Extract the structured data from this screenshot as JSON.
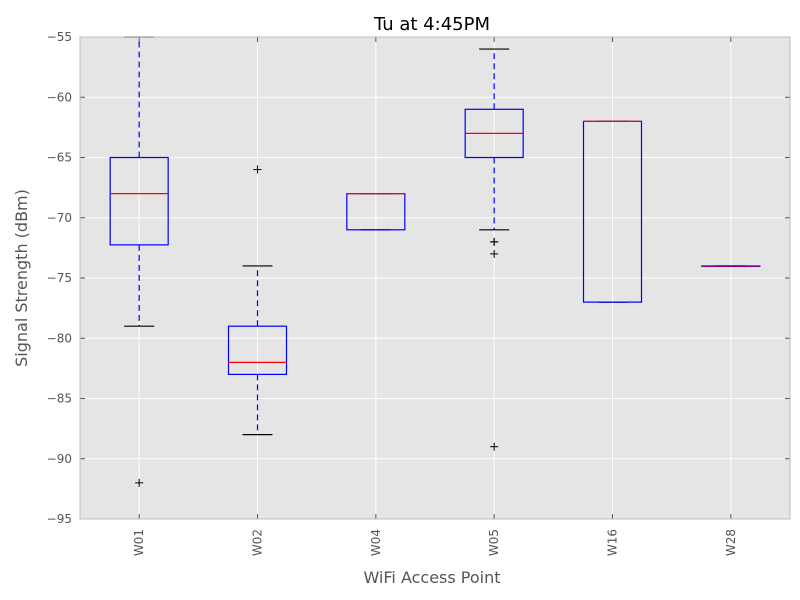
{
  "chart_data": {
    "type": "box",
    "title": "Tu at 4:45PM",
    "xlabel": "WiFi Access Point",
    "ylabel": "Signal Strength (dBm)",
    "ylim": [
      -95,
      -55
    ],
    "yticks": [
      -55,
      -60,
      -65,
      -70,
      -75,
      -80,
      -85,
      -90,
      -95
    ],
    "ytick_labels": [
      "−55",
      "−60",
      "−65",
      "−70",
      "−75",
      "−80",
      "−85",
      "−90",
      "−95"
    ],
    "grid": true,
    "categories": [
      "W01",
      "W02",
      "W04",
      "W05",
      "W16",
      "W28"
    ],
    "boxes": [
      {
        "label": "W01",
        "whisker_low": -79,
        "q1": -72.25,
        "median": -68,
        "q3": -65,
        "whisker_high": -55,
        "outliers": [
          -92
        ]
      },
      {
        "label": "W02",
        "whisker_low": -88,
        "q1": -83,
        "median": -82,
        "q3": -79,
        "whisker_high": -74,
        "outliers": [
          -66
        ]
      },
      {
        "label": "W04",
        "whisker_low": -71,
        "q1": -71,
        "median": -68,
        "q3": -68,
        "whisker_high": -68,
        "outliers": []
      },
      {
        "label": "W05",
        "whisker_low": -71,
        "q1": -65,
        "median": -63,
        "q3": -61,
        "whisker_high": -56,
        "outliers": [
          -72,
          -72,
          -73,
          -89
        ]
      },
      {
        "label": "W16",
        "whisker_low": -77,
        "q1": -77,
        "median": -62,
        "q3": -62,
        "whisker_high": -62,
        "outliers": []
      },
      {
        "label": "W28",
        "whisker_low": -74,
        "q1": -74,
        "median": -74,
        "q3": -74,
        "whisker_high": -74,
        "outliers": []
      }
    ],
    "colors": {
      "box": "#0000ff",
      "median": "#ff0000",
      "whisker_cap": "#000000",
      "plot_background": "#e5e5e5",
      "grid": "#ffffff",
      "frame": "#bcbcbc"
    }
  }
}
